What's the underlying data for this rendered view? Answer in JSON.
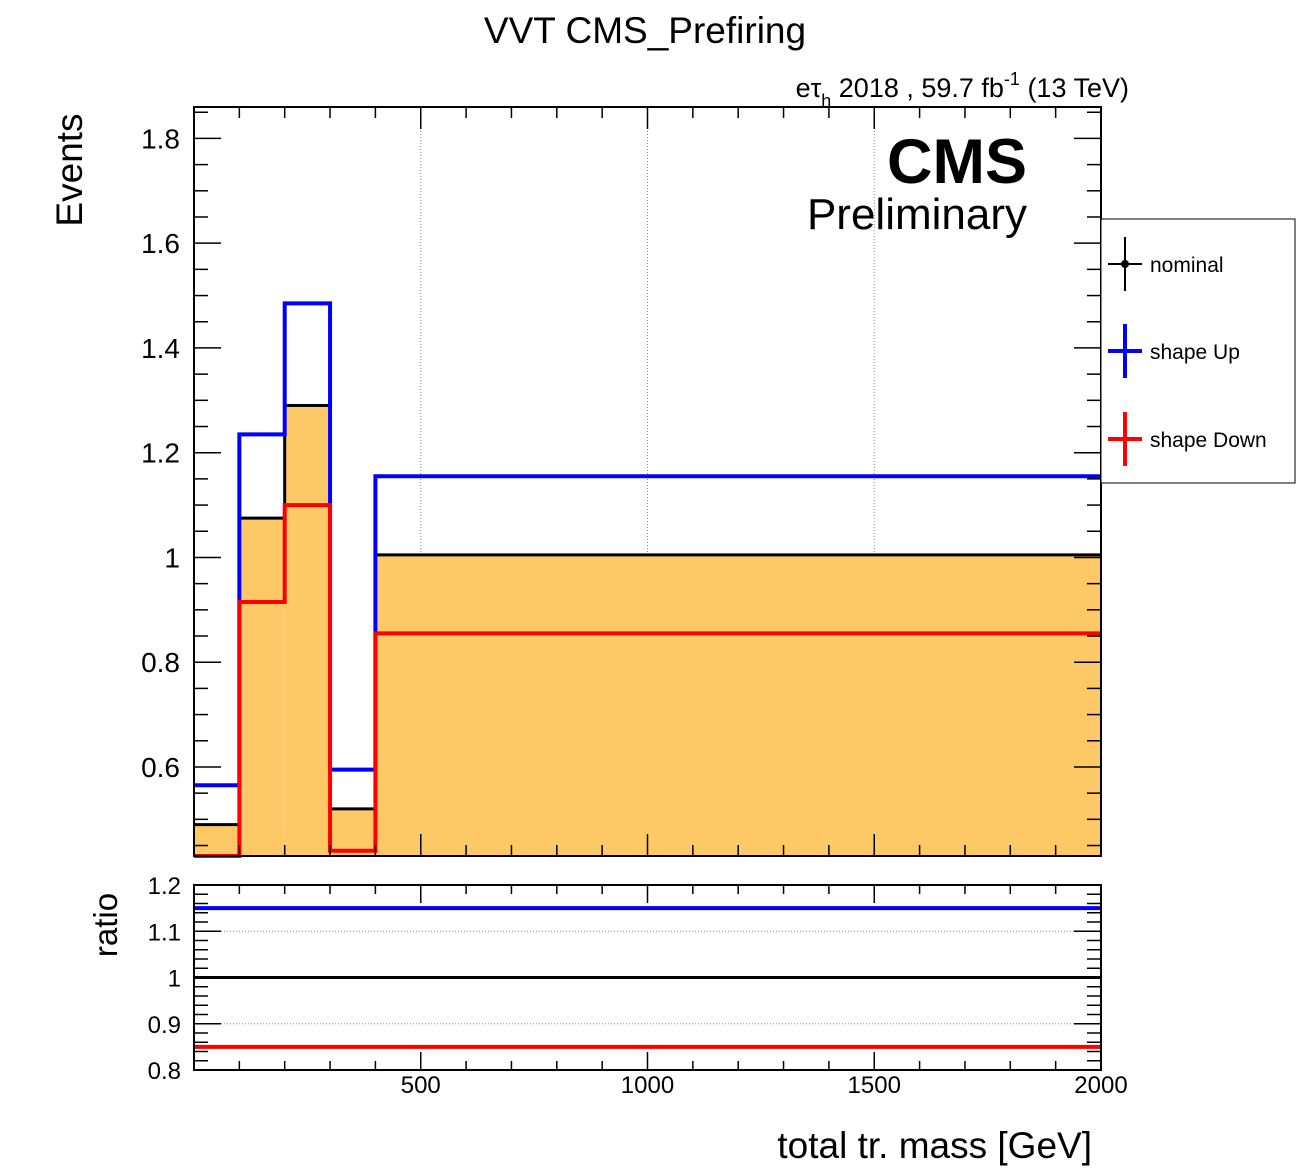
{
  "chart_data": [
    {
      "type": "step",
      "title": "VVT CMS_Prefiring",
      "lumi": {
        "channel_main": "eτ",
        "channel_sub": "h",
        "year_text": " 2018 , 59.7 fb",
        "exp": "-1",
        "energy": " (13 TeV)"
      },
      "cms_label": "CMS",
      "cms_sublabel": "Preliminary",
      "ylabel": "Events",
      "xlim": [
        0,
        2000
      ],
      "ylim": [
        0.43,
        1.86
      ],
      "yticks": [
        0.6,
        0.8,
        1.0,
        1.2,
        1.4,
        1.6,
        1.8
      ],
      "ytick_labels": [
        "0.6",
        "0.8",
        "1",
        "1.2",
        "1.4",
        "1.6",
        "1.8"
      ],
      "bin_edges": [
        0,
        100,
        200,
        300,
        400,
        2000
      ],
      "series": [
        {
          "name": "nominal",
          "color": "#000000",
          "fill": "#fdc966",
          "values": [
            0.49,
            1.075,
            1.29,
            0.52,
            1.005
          ]
        },
        {
          "name": "shape Up",
          "color": "#0000ff",
          "values": [
            0.565,
            1.235,
            1.485,
            0.595,
            1.155
          ]
        },
        {
          "name": "shape Down",
          "color": "#ff0000",
          "values": [
            0.42,
            0.915,
            1.1,
            0.44,
            0.855
          ]
        }
      ],
      "legend": {
        "placement": "right",
        "entries": [
          "nominal",
          "shape Up",
          "shape Down"
        ]
      }
    },
    {
      "type": "line",
      "ylabel": "ratio",
      "xlabel": "total tr. mass [GeV]",
      "xlim": [
        0,
        2000
      ],
      "ylim": [
        0.8,
        1.2
      ],
      "xticks": [
        500,
        1000,
        1500,
        2000
      ],
      "xtick_labels": [
        "500",
        "1000",
        "1500",
        "2000"
      ],
      "yticks": [
        0.8,
        0.9,
        1.0,
        1.1,
        1.2
      ],
      "ytick_labels": [
        "0.8",
        "0.9",
        "1",
        "1.1",
        "1.2"
      ],
      "series": [
        {
          "name": "shape Up",
          "color": "#0000ff",
          "value": 1.15
        },
        {
          "name": "nominal",
          "color": "#000000",
          "value": 1.0
        },
        {
          "name": "shape Down",
          "color": "#ff0000",
          "value": 0.85
        }
      ]
    }
  ]
}
